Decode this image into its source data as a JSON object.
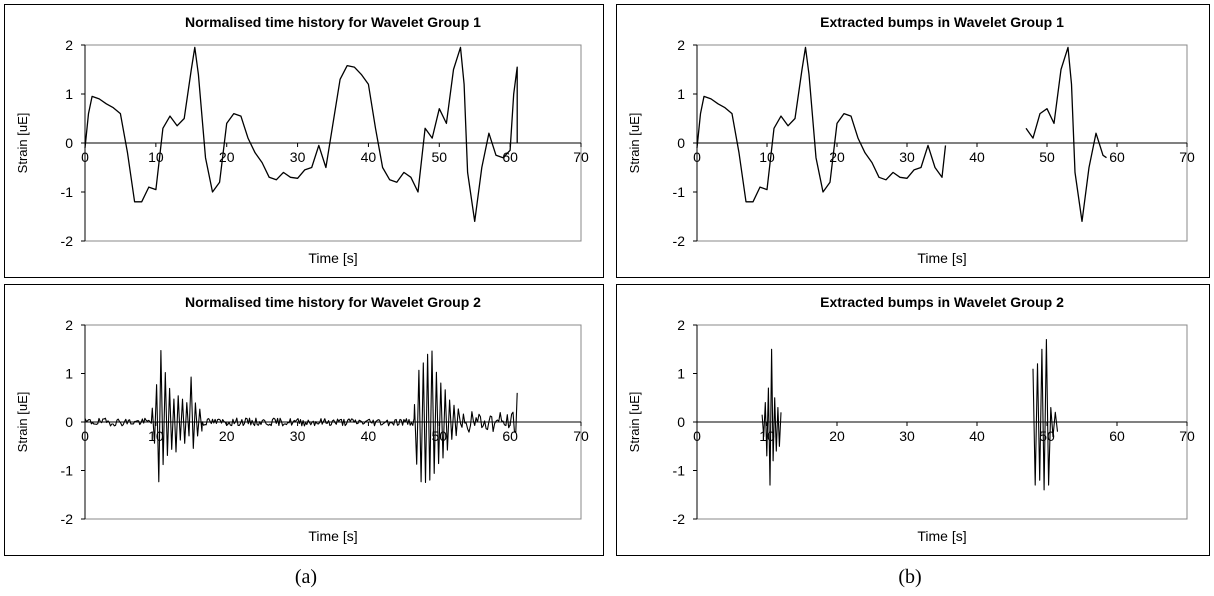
{
  "captions": [
    "(a)",
    "(b)"
  ],
  "chart_data": [
    {
      "type": "line",
      "title": "Normalised time history for Wavelet Group 1",
      "xlabel": "Time [s]",
      "ylabel": "Strain [uE]",
      "xlim": [
        0,
        70
      ],
      "ylim": [
        -2,
        2
      ],
      "xticks": [
        "0",
        "10",
        "20",
        "30",
        "40",
        "50",
        "60",
        "70"
      ],
      "yticks": [
        "2",
        "1",
        "0",
        "-1",
        "-2"
      ],
      "grid": false,
      "x": [
        0,
        0.5,
        1,
        2,
        3,
        4,
        5,
        6,
        7,
        8,
        9,
        10,
        11,
        12,
        13,
        14,
        15,
        15.5,
        16,
        17,
        18,
        19,
        20,
        21,
        22,
        23,
        24,
        25,
        26,
        27,
        28,
        29,
        30,
        31,
        32,
        33,
        34,
        35,
        36,
        37,
        38,
        39,
        40,
        41,
        42,
        43,
        44,
        45,
        46,
        47,
        48,
        49,
        50,
        51,
        52,
        53,
        53.5,
        54,
        55,
        56,
        57,
        58,
        59,
        60,
        60.5,
        61
      ],
      "y": [
        -0.1,
        0.6,
        0.95,
        0.9,
        0.8,
        0.72,
        0.6,
        -0.2,
        -1.2,
        -1.2,
        -0.9,
        -0.95,
        0.3,
        0.55,
        0.35,
        0.5,
        1.5,
        1.95,
        1.4,
        -0.3,
        -1.0,
        -0.8,
        0.4,
        0.6,
        0.55,
        0.1,
        -0.2,
        -0.4,
        -0.7,
        -0.75,
        -0.6,
        -0.7,
        -0.72,
        -0.55,
        -0.5,
        -0.05,
        -0.5,
        0.4,
        1.3,
        1.58,
        1.55,
        1.4,
        1.2,
        0.3,
        -0.5,
        -0.75,
        -0.8,
        -0.6,
        -0.7,
        -1.0,
        0.3,
        0.1,
        0.7,
        0.4,
        1.5,
        1.95,
        1.2,
        -0.6,
        -1.6,
        -0.5,
        0.2,
        -0.25,
        -0.3,
        -0.15,
        1.0,
        1.55
      ],
      "drop_to_zero_at_end": true
    },
    {
      "type": "line",
      "title": "Extracted bumps in Wavelet Group 1",
      "xlabel": "Time [s]",
      "ylabel": "Strain [uE]",
      "xlim": [
        0,
        70
      ],
      "ylim": [
        -2,
        2
      ],
      "xticks": [
        "0",
        "10",
        "20",
        "30",
        "40",
        "50",
        "60",
        "70"
      ],
      "yticks": [
        "2",
        "1",
        "0",
        "-1",
        "-2"
      ],
      "grid": false,
      "segments": [
        {
          "x": [
            0,
            0.5,
            1,
            2,
            3,
            4,
            5,
            6,
            7,
            8,
            9,
            10,
            11,
            12,
            13,
            14,
            15,
            15.5,
            16,
            17,
            18,
            19,
            20,
            21,
            22,
            23,
            24,
            25,
            26,
            27,
            28,
            29,
            30,
            31,
            32,
            33,
            34,
            35,
            35.5
          ],
          "y": [
            -0.1,
            0.6,
            0.95,
            0.9,
            0.8,
            0.72,
            0.6,
            -0.2,
            -1.2,
            -1.2,
            -0.9,
            -0.95,
            0.3,
            0.55,
            0.35,
            0.5,
            1.5,
            1.95,
            1.4,
            -0.3,
            -1.0,
            -0.8,
            0.4,
            0.6,
            0.55,
            0.1,
            -0.2,
            -0.4,
            -0.7,
            -0.75,
            -0.6,
            -0.7,
            -0.72,
            -0.55,
            -0.5,
            -0.05,
            -0.5,
            -0.7,
            -0.05
          ]
        },
        {
          "x": [
            47,
            47.5,
            48,
            49,
            50,
            51,
            52,
            53,
            53.5,
            54,
            55,
            56,
            57,
            58,
            58.5
          ],
          "y": [
            0.3,
            0.2,
            0.1,
            0.6,
            0.7,
            0.4,
            1.5,
            1.95,
            1.2,
            -0.6,
            -1.6,
            -0.5,
            0.2,
            -0.25,
            -0.3
          ]
        }
      ]
    },
    {
      "type": "line",
      "title": "Normalised time history for Wavelet Group 2",
      "xlabel": "Time [s]",
      "ylabel": "Strain [uE]",
      "xlim": [
        0,
        70
      ],
      "ylim": [
        -2,
        2
      ],
      "xticks": [
        "0",
        "10",
        "20",
        "30",
        "40",
        "50",
        "60",
        "70"
      ],
      "yticks": [
        "2",
        "1",
        "0",
        "-1",
        "-2"
      ],
      "grid": false,
      "bursts": [
        {
          "start": 9.5,
          "end": 16.5,
          "amps": [
            0.3,
            -0.5,
            0.9,
            -1.3,
            1.5,
            -0.9,
            1.1,
            -0.7,
            0.8,
            -0.6,
            0.5,
            -0.7,
            0.6,
            -0.4,
            0.5,
            -0.5,
            0.4,
            -0.3,
            1.0,
            -0.6,
            0.4,
            -0.3,
            0.3,
            -0.2
          ]
        },
        {
          "start": 46.5,
          "end": 53,
          "amps": [
            0.4,
            -0.9,
            1.2,
            -1.3,
            1.3,
            -1.4,
            1.6,
            -1.4,
            1.7,
            -1.2,
            1.1,
            -1.0,
            0.9,
            -0.8,
            0.7,
            -0.6,
            0.5,
            -0.4,
            0.4,
            -0.3,
            0.3,
            -0.2
          ]
        }
      ],
      "noise_amp": 0.08,
      "tail": {
        "start": 53,
        "end": 61,
        "amp": 0.22,
        "end_spike": 0.6
      }
    },
    {
      "type": "line",
      "title": "Extracted bumps in Wavelet Group 2",
      "xlabel": "Time [s]",
      "ylabel": "Strain [uE]",
      "xlim": [
        0,
        70
      ],
      "ylim": [
        -2,
        2
      ],
      "xticks": [
        "0",
        "10",
        "20",
        "30",
        "40",
        "50",
        "60",
        "70"
      ],
      "yticks": [
        "2",
        "1",
        "0",
        "-1",
        "-2"
      ],
      "grid": false,
      "bursts": [
        {
          "start": 9.3,
          "end": 12,
          "amps": [
            0.15,
            -0.3,
            0.4,
            -0.7,
            0.7,
            -1.3,
            1.5,
            -0.8,
            0.5,
            -0.6,
            0.3,
            -0.5,
            0.2
          ]
        },
        {
          "start": 48,
          "end": 51.5,
          "amps": [
            1.1,
            -1.3,
            1.2,
            -1.2,
            1.5,
            -1.4,
            1.7,
            -1.3,
            0.3,
            -0.3,
            0.2,
            -0.2
          ]
        }
      ]
    }
  ]
}
